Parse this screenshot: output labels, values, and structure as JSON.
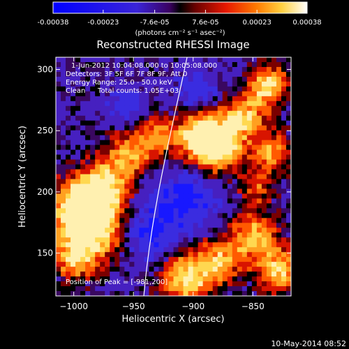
{
  "colorbar": {
    "ticks": [
      {
        "value": -0.00038,
        "label": "-0.00038"
      },
      {
        "value": -0.00023,
        "label": "-0.00023"
      },
      {
        "value": -7.6e-05,
        "label": "-7.6e-05"
      },
      {
        "value": 7.6e-05,
        "label": "7.6e-05"
      },
      {
        "value": 0.00023,
        "label": "0.00023"
      },
      {
        "value": 0.00038,
        "label": "0.00038"
      }
    ],
    "range": [
      -0.00038,
      0.00038
    ],
    "units_label": "(photons cm⁻² s⁻¹ asec⁻²)"
  },
  "title": "Reconstructed RHESSI Image",
  "info": {
    "time_range": "1-Jun-2012 10:04:08.000 to 10:05:08.000",
    "detectors": "Detectors: 3F 5F 6F 7F 8F 9F, Att 0",
    "energy": "Energy Range: 25.0 - 50.0 keV",
    "method": "Clean",
    "counts": "Total counts: 1.05E+03",
    "peak": "Position of Peak = [-981,200]"
  },
  "axes": {
    "xlabel": "Heliocentric X (arcsec)",
    "ylabel": "Heliocentric Y (arcsec)",
    "xlim": [
      -1015,
      -818
    ],
    "ylim": [
      115,
      310
    ],
    "xticks": [
      {
        "value": -1000,
        "label": "−1000"
      },
      {
        "value": -950,
        "label": "−950"
      },
      {
        "value": -900,
        "label": "−900"
      },
      {
        "value": -850,
        "label": "−850"
      }
    ],
    "yticks": [
      {
        "value": 150,
        "label": "150"
      },
      {
        "value": 200,
        "label": "200"
      },
      {
        "value": 250,
        "label": "250"
      },
      {
        "value": 300,
        "label": "300"
      }
    ]
  },
  "footer": {
    "date": "10-May-2014 08:52"
  }
}
